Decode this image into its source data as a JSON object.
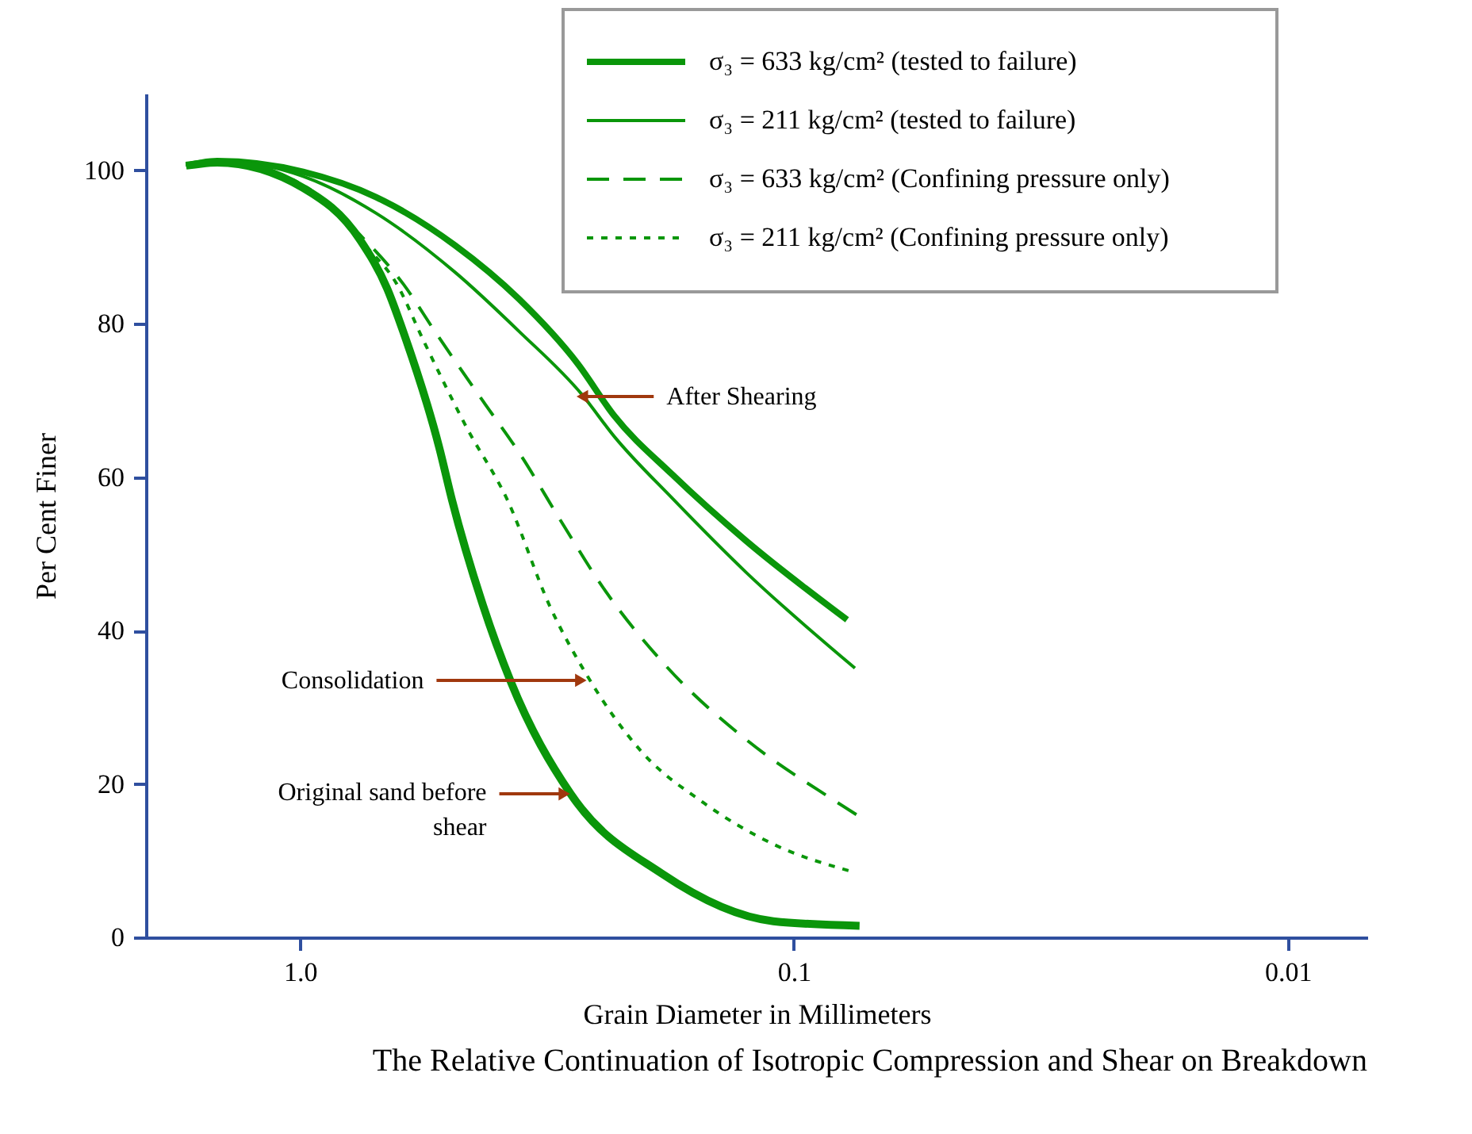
{
  "chart_data": {
    "type": "line",
    "title": "The Relative Continuation of Isotropic Compression and Shear on Breakdown",
    "xlabel": "Grain Diameter in Millimeters",
    "ylabel": "Per Cent Finer",
    "log": "x",
    "xlim": [
      2.05,
      0.0069
    ],
    "xticks": [
      {
        "value": 1,
        "label": "1.0"
      },
      0.1,
      0.01
    ],
    "ylim": [
      0,
      110
    ],
    "yticks": [
      0,
      20,
      40,
      60,
      80,
      100
    ],
    "grid": false,
    "legend": "top right",
    "marker": "none",
    "annotations": [
      {
        "text": "After Shearing",
        "x": 0.268,
        "y": 70.5
      },
      {
        "text": "Consolidation",
        "x": 0.262,
        "y": 33.5
      },
      {
        "text": "Original sand before shear",
        "x": 0.283,
        "y": 18.7
      }
    ],
    "series": [
      {
        "name": "σ₃ = 633 kg/cm² (tested to failure)",
        "color": "#0a960a",
        "line_style": "solid",
        "x": [
          1.7,
          1.47,
          0.985,
          0.701,
          0.485,
          0.36,
          0.274,
          0.231,
          0.176,
          0.125,
          0.078
        ],
        "values": [
          100.6,
          101.2,
          99.8,
          96.5,
          90.2,
          83.2,
          74.8,
          68.0,
          60.3,
          51.7,
          41.4
        ]
      },
      {
        "name": "σ₃ = 211 kg/cm² (tested to failure)",
        "color": "#0a960a",
        "line_style": "solid",
        "x": [
          1.7,
          1.47,
          0.985,
          0.701,
          0.485,
          0.36,
          0.268,
          0.231,
          0.176,
          0.125,
          0.0752
        ],
        "values": [
          100.6,
          101.2,
          99.2,
          94.4,
          86.7,
          79.0,
          70.7,
          65.3,
          57.2,
          47.6,
          35.1
        ]
      },
      {
        "name": "σ₃ = 633 kg/cm² (Confining pressure only)",
        "color": "#0a960a",
        "line_style": "dashed",
        "x": [
          1.7,
          1.47,
          0.964,
          0.738,
          0.618,
          0.533,
          0.428,
          0.36,
          0.295,
          0.244,
          0.181,
          0.125,
          0.084,
          0.0747
        ],
        "values": [
          100.6,
          101.2,
          97.5,
          90.9,
          85.2,
          79.0,
          70.1,
          63.2,
          54.1,
          45.7,
          35.3,
          25.8,
          18.1,
          16.0
        ]
      },
      {
        "name": "σ₃ = 211 kg/cm² (Confining pressure only)",
        "color": "#0a960a",
        "line_style": "dotted",
        "x": [
          1.7,
          1.47,
          0.964,
          0.738,
          0.637,
          0.562,
          0.46,
          0.38,
          0.311,
          0.262,
          0.204,
          0.152,
          0.108,
          0.0775
        ],
        "values": [
          100.6,
          101.2,
          97.7,
          90.2,
          85.2,
          77.8,
          66.5,
          57.0,
          43.0,
          34.1,
          24.3,
          17.5,
          11.9,
          8.7
        ]
      },
      {
        "color": "#0a960a",
        "line_style": "solid",
        "x": [
          1.7,
          1.47,
          0.985,
          0.755,
          0.666,
          0.618,
          0.522,
          0.492,
          0.428,
          0.374,
          0.283,
          0.185,
          0.11,
          0.0736
        ],
        "values": [
          100.6,
          101.0,
          97.7,
          90.9,
          84.6,
          79.0,
          63.8,
          57.0,
          43.7,
          33.3,
          18.7,
          8.3,
          2.1,
          1.5
        ]
      }
    ]
  }
}
